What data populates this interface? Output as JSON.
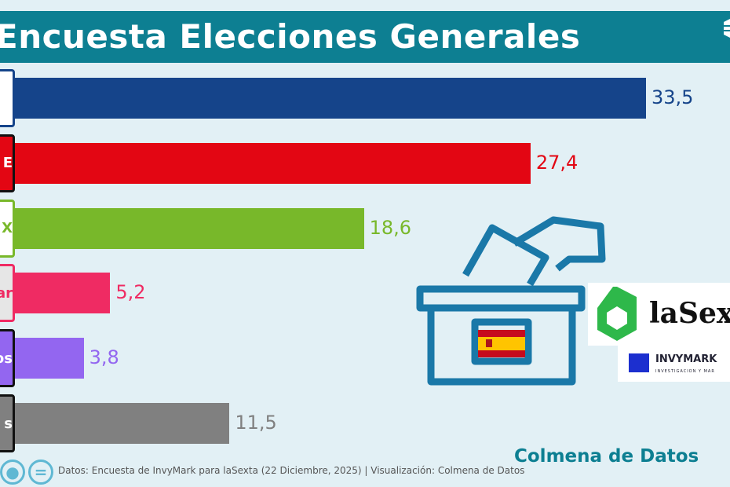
{
  "title": "Encuesta Elecciones Generales",
  "chart_data": {
    "type": "bar",
    "orientation": "horizontal",
    "title": "Encuesta Elecciones Generales",
    "categories": [
      "",
      "E",
      "X",
      "ar",
      "os",
      "s"
    ],
    "values": [
      33.5,
      27.4,
      18.6,
      5.2,
      3.8,
      11.5
    ],
    "value_labels": [
      "33,5",
      "27,4",
      "18,6",
      "5,2",
      "3,8",
      "11,5"
    ],
    "colors": [
      "#15448a",
      "#e30613",
      "#78b82a",
      "#ef2b63",
      "#9366f0",
      "#808080"
    ],
    "label_text_colors": [
      "#15448a",
      "#ffffff",
      "#78b82a",
      "#ef2b63",
      "#ffffff",
      "#ffffff"
    ],
    "label_bg_colors": [
      "#ffffff",
      "#e30613",
      "#ffffff",
      "#e6e6e6",
      "#9366f0",
      "#808080"
    ],
    "label_border_colors": [
      "#15448a",
      "#111111",
      "#78b82a",
      "#ef2b63",
      "#111111",
      "#111111"
    ],
    "xlim": [
      0,
      33.5
    ],
    "grid": false
  },
  "logos": {
    "lasexta": "laSexta",
    "invymark": "INVYMARK",
    "invymark_sub": "INVESTIGACION Y MAR"
  },
  "footer": "Datos: Encuesta de InvyMark  para laSexta (22 Diciembre, 2025) | Visualización: Colmena de Datos",
  "brand": "Colmena de Datos",
  "icons": [
    "person-icon",
    "equals-icon",
    "ballot-box-icon",
    "spain-flag-icon"
  ]
}
